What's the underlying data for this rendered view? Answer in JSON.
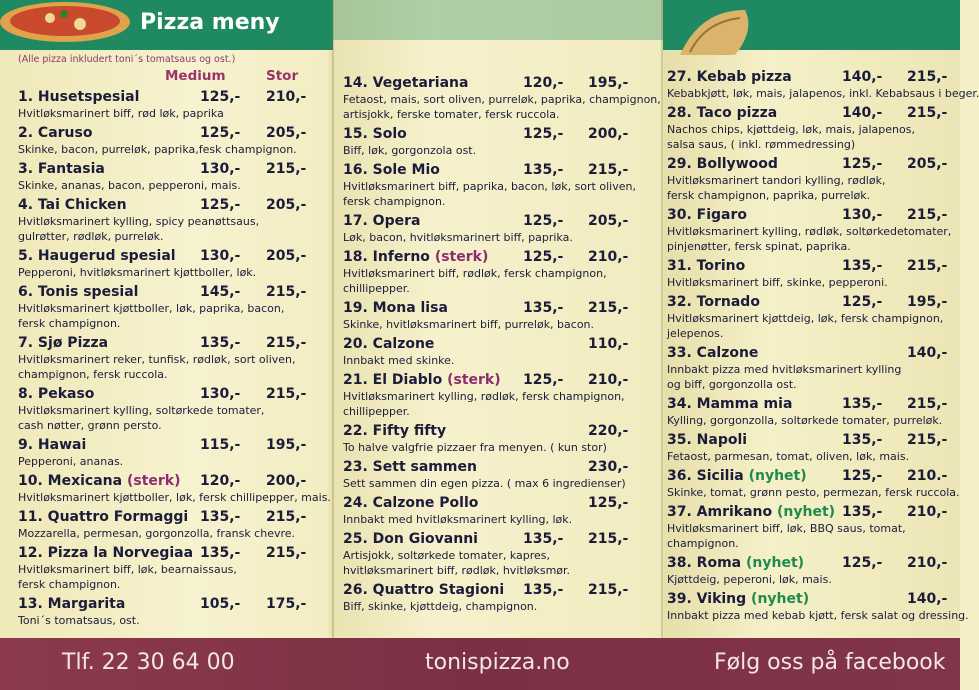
{
  "header": {
    "title": "Pizza meny",
    "note": "(Alle pizza inkludert toni´s tomatsaus og ost.)"
  },
  "price_headings": {
    "medium": "Medium",
    "stor": "Stor"
  },
  "columns": [
    {
      "items": [
        {
          "name": "1. Husetspesial",
          "medium": "125,-",
          "stor": "210,-",
          "desc": [
            "Hvitløksmarinert biff, rød løk, paprika"
          ]
        },
        {
          "name": "2. Caruso",
          "medium": "125,-",
          "stor": "205,-",
          "desc": [
            "Skinke, bacon, purreløk, paprika,fesk champignon."
          ]
        },
        {
          "name": "3. Fantasia",
          "medium": "130,-",
          "stor": "215,-",
          "desc": [
            "Skinke, ananas, bacon, pepperoni, mais."
          ]
        },
        {
          "name": "4. Tai Chicken",
          "medium": "125,-",
          "stor": "205,-",
          "desc": [
            "Hvitløksmarinert kylling, spicy peanøttsaus,",
            "gulrøtter, rødløk, purreløk."
          ]
        },
        {
          "name": "5. Haugerud spesial",
          "medium": "130,-",
          "stor": "205,-",
          "desc": [
            "Pepperoni, hvitløksmarinert kjøttboller, løk."
          ]
        },
        {
          "name": "6. Tonis spesial",
          "medium": "145,-",
          "stor": "215,-",
          "desc": [
            "Hvitløksmarinert kjøttboller, løk, paprika, bacon,",
            "fersk champignon."
          ]
        },
        {
          "name": "7. Sjø Pizza",
          "medium": "135,-",
          "stor": "215,-",
          "desc": [
            "Hvitløksmarinert reker, tunfisk, rødløk, sort oliven,",
            "champignon, fersk ruccola."
          ]
        },
        {
          "name": "8. Pekaso",
          "medium": "130,-",
          "stor": "215,-",
          "desc": [
            "Hvitløksmarinert kylling, soltørkede tomater,",
            "cash nøtter, grønn persto."
          ]
        },
        {
          "name": "9. Hawai",
          "medium": "115,-",
          "stor": "195,-",
          "desc": [
            "Pepperoni, ananas."
          ]
        },
        {
          "name": "10. Mexicana",
          "tag": "(sterk)",
          "tag_type": "sterk",
          "medium": "120,-",
          "stor": "200,-",
          "desc": [
            "Hvitløksmarinert kjøttboller, løk, fersk chillipepper, mais."
          ]
        },
        {
          "name": "11. Quattro Formaggi",
          "medium": "135,-",
          "stor": "215,-",
          "desc": [
            "Mozzarella, permesan, gorgonzolla, fransk chevre."
          ]
        },
        {
          "name": "12. Pizza la Norvegiaa",
          "medium": "135,-",
          "stor": "215,-",
          "desc": [
            "Hvitløksmarinert biff, løk, bearnaissaus,",
            "fersk champignon."
          ]
        },
        {
          "name": "13. Margarita",
          "medium": "105,-",
          "stor": "175,-",
          "desc": [
            "Toni´s tomatsaus, ost."
          ]
        }
      ]
    },
    {
      "items": [
        {
          "name": "14. Vegetariana",
          "medium": "120,-",
          "stor": "195,-",
          "desc": [
            "Fetaost, mais, sort oliven, purreløk, paprika, champignon,",
            "artisjokk, ferske tomater, fersk ruccola."
          ]
        },
        {
          "name": "15. Solo",
          "medium": "125,-",
          "stor": "200,-",
          "desc": [
            "Biff, løk, gorgonzola ost."
          ]
        },
        {
          "name": "16. Sole Mio",
          "medium": "135,-",
          "stor": "215,-",
          "desc": [
            "Hvitløksmarinert biff, paprika, bacon, løk, sort oliven,",
            "fersk champignon."
          ]
        },
        {
          "name": "17. Opera",
          "medium": "125,-",
          "stor": "205,-",
          "desc": [
            "Løk, bacon, hvitløksmarinert biff, paprika."
          ]
        },
        {
          "name": "18. Inferno",
          "tag": "(sterk)",
          "tag_type": "sterk",
          "medium": "125,-",
          "stor": "210,-",
          "desc": [
            "Hvitløksmarinert biff, rødløk, fersk champignon,",
            "chillipepper."
          ]
        },
        {
          "name": "19. Mona lisa",
          "medium": "135,-",
          "stor": "215,-",
          "desc": [
            "Skinke, hvitløksmarinert biff, purreløk, bacon."
          ]
        },
        {
          "name": "20. Calzone",
          "stor": "110,-",
          "desc": [
            "Innbakt med skinke."
          ]
        },
        {
          "name": "21. El Diablo",
          "tag": "(sterk)",
          "tag_type": "sterk",
          "medium": "125,-",
          "stor": "210,-",
          "desc": [
            "Hvitløksmarinert kylling, rødløk, fersk champignon,",
            "chillipepper."
          ]
        },
        {
          "name": "22. Fifty fifty",
          "stor": "220,-",
          "desc": [
            "To halve valgfrie pizzaer fra menyen. ( kun stor)"
          ]
        },
        {
          "name": "23. Sett sammen",
          "stor": "230,-",
          "desc": [
            "Sett sammen din egen pizza. ( max 6 ingredienser)"
          ]
        },
        {
          "name": "24. Calzone Pollo",
          "stor": "125,-",
          "desc": [
            "Innbakt  med hvitløksmarinert kylling, løk."
          ]
        },
        {
          "name": "25. Don Giovanni",
          "medium": "135,-",
          "stor": "215,-",
          "desc": [
            "Artisjokk, soltørkede tomater, kapres,",
            "hvitløksmarinert biff, rødløk, hvitløksmør."
          ]
        },
        {
          "name": "26. Quattro Stagioni",
          "medium": "135,-",
          "stor": "215,-",
          "desc": [
            "Biff, skinke, kjøttdeig, champignon."
          ]
        }
      ]
    },
    {
      "items": [
        {
          "name": "27. Kebab pizza",
          "medium": "140,-",
          "stor": "215,-",
          "desc": [
            "Kebabkjøtt, løk, mais, jalapenos, inkl. Kebabsaus i beger."
          ]
        },
        {
          "name": "28. Taco pizza",
          "medium": "140,-",
          "stor": "215,-",
          "desc": [
            "Nachos chips, kjøttdeig, løk, mais, jalapenos,",
            "salsa saus,  ( inkl. rømmedressing)"
          ]
        },
        {
          "name": "29. Bollywood",
          "medium": "125,-",
          "stor": "205,-",
          "desc": [
            "Hvitløksmarinert tandori kylling, rødløk,",
            "fersk champignon, paprika, purreløk."
          ]
        },
        {
          "name": "30. Figaro",
          "medium": "130,-",
          "stor": "215,-",
          "desc": [
            "Hvitløksmarinert kylling, rødløk, soltørkedetomater,",
            "pinjenøtter, fersk spinat, paprika."
          ]
        },
        {
          "name": "31. Torino",
          "medium": "135,-",
          "stor": "215,-",
          "desc": [
            "Hvitløksmarinert biff, skinke, pepperoni."
          ]
        },
        {
          "name": "32. Tornado",
          "medium": "125,-",
          "stor": "195,-",
          "desc": [
            "Hvitløksmarinert kjøttdeig, løk, fersk champignon,",
            "jelepenos."
          ]
        },
        {
          "name": "33. Calzone",
          "stor": "140,-",
          "desc": [
            "Innbakt pizza med hvitløksmarinert kylling",
            "og biff, gorgonzolla ost."
          ]
        },
        {
          "name": "34. Mamma mia",
          "medium": "135,-",
          "stor": "215,-",
          "desc": [
            "Kylling, gorgonzolla, soltørkede tomater, purreløk."
          ]
        },
        {
          "name": "35. Napoli",
          "medium": "135,-",
          "stor": "215,-",
          "desc": [
            "Fetaost, parmesan, tomat, oliven, løk, mais."
          ]
        },
        {
          "name": "36. Sicilia",
          "tag": "(nyhet)",
          "tag_type": "nyhet",
          "medium": "125,-",
          "stor": "210.-",
          "desc": [
            "Skinke, tomat, grønn pesto, permezan, fersk ruccola."
          ]
        },
        {
          "name": "37. Amrikano",
          "tag": "(nyhet)",
          "tag_type": "nyhet",
          "medium": "135,-",
          "stor": "210,-",
          "desc": [
            "Hvitløksmarinert biff, løk, BBQ saus, tomat,",
            "champignon."
          ]
        },
        {
          "name": "38. Roma",
          "tag": "(nyhet)",
          "tag_type": "nyhet",
          "medium": "125,-",
          "stor": "210,-",
          "desc": [
            "Kjøttdeig, peperoni, løk, mais."
          ]
        },
        {
          "name": "39. Viking",
          "tag": "(nyhet)",
          "tag_type": "nyhet",
          "stor": "140,-",
          "desc": [
            "Innbakt pizza med kebab kjøtt, fersk salat og dressing."
          ]
        }
      ]
    }
  ],
  "footer": {
    "phone": "Tlf. 22 30 64 00",
    "website": "tonispizza.no",
    "facebook": "Følg oss på facebook"
  }
}
